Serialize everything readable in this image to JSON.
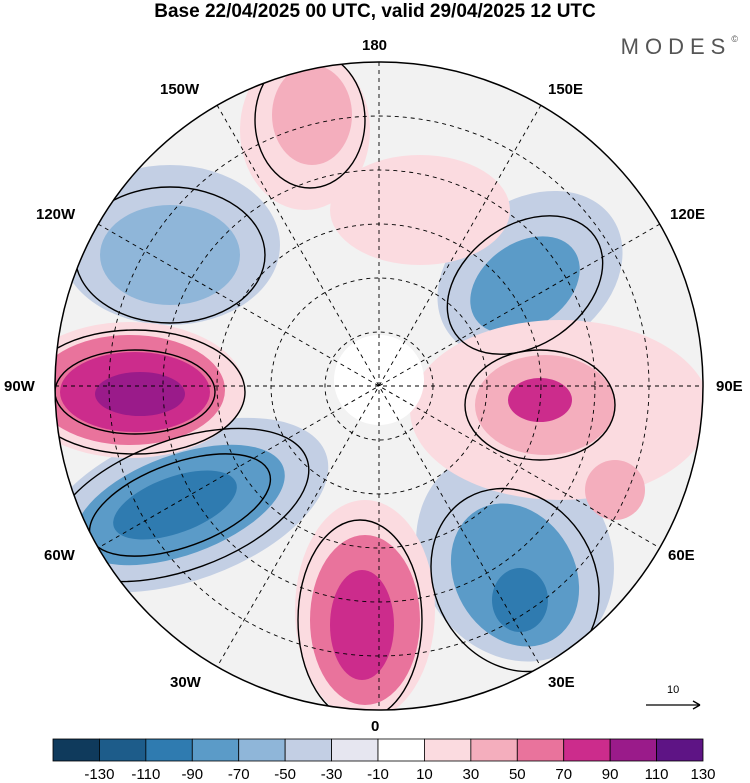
{
  "title": "Base 22/04/2025 00 UTC, valid 29/04/2025 12 UTC",
  "brand": "MODES",
  "brand_mark": "©",
  "longitudes": {
    "n180": "180",
    "w150": "150W",
    "e150": "150E",
    "w120": "120W",
    "e120": "120E",
    "w90": "90W",
    "e90": "90E",
    "w60": "60W",
    "e60": "60E",
    "w30": "30W",
    "e30": "30E",
    "s0": "0"
  },
  "reference_vector": "10",
  "colorbar": {
    "labels": [
      "-130",
      "-110",
      "-90",
      "-70",
      "-50",
      "-30",
      "-10",
      "10",
      "30",
      "50",
      "70",
      "90",
      "110",
      "130"
    ],
    "colors": [
      "#0f3a5c",
      "#1d5c8a",
      "#2f7bb0",
      "#5b9bc8",
      "#8fb6d9",
      "#c3cfe4",
      "#e6e6f0",
      "#ffffff",
      "#fbdbe0",
      "#f4aebd",
      "#e9739c",
      "#cc2c8c",
      "#9a1b8a",
      "#5e1485"
    ]
  }
}
